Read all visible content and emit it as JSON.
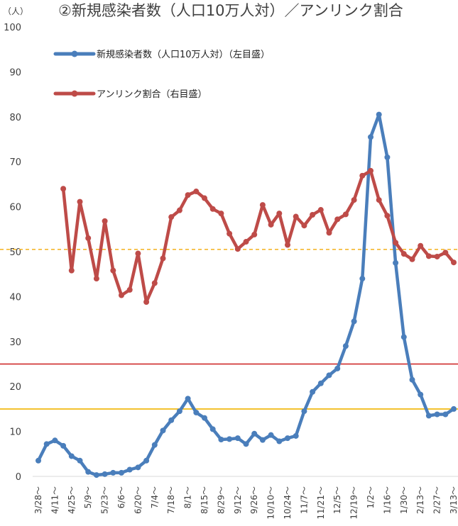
{
  "chart_data": {
    "type": "line",
    "title": "②新規感染者数（人口10万人対）／アンリンク割合",
    "y_unit": "（人）",
    "ylim": [
      0,
      100
    ],
    "yticks": [
      0,
      10,
      20,
      30,
      40,
      50,
      60,
      70,
      80,
      90,
      100
    ],
    "x_tick_labels": [
      "3/28～",
      "4/11～",
      "4/25～",
      "5/9～",
      "5/23～",
      "6/6～",
      "6/20～",
      "7/4～",
      "7/18～",
      "8/1～",
      "8/15～",
      "8/29～",
      "9/12～",
      "9/26～",
      "10/10～",
      "10/24～",
      "11/7～",
      "11/21～",
      "12/5～",
      "12/19～",
      "1/2～",
      "1/16～",
      "1/30～",
      "2/13～",
      "2/27～",
      "3/13～"
    ],
    "series": [
      {
        "name": "新規感染者数（人口10万人対）（左目盛）",
        "color": "#4a7ebb",
        "values": [
          3.5,
          7.2,
          8.0,
          6.8,
          4.5,
          3.5,
          1.0,
          0.3,
          0.5,
          0.8,
          0.8,
          1.5,
          2.0,
          3.5,
          7.0,
          10.2,
          12.5,
          14.5,
          17.3,
          14.2,
          13.0,
          10.5,
          8.2,
          8.3,
          8.5,
          7.2,
          9.5,
          8.1,
          9.2,
          7.8,
          8.5,
          9.0,
          14.5,
          18.8,
          20.7,
          22.5,
          24.0,
          29.0,
          34.5,
          44.0,
          75.5,
          80.5,
          71.0,
          47.5,
          31.0,
          21.5,
          18.2,
          13.5,
          13.8,
          13.8,
          15.0
        ]
      },
      {
        "name": "アンリンク割合（右目盛）",
        "color": "#be4b48",
        "start_index": 3,
        "values": [
          64.0,
          45.8,
          61.1,
          53.0,
          44.0,
          56.8,
          45.8,
          40.3,
          41.5,
          49.6,
          38.8,
          43.0,
          48.5,
          57.7,
          59.2,
          62.6,
          63.4,
          61.9,
          59.5,
          58.5,
          54.0,
          50.6,
          52.2,
          53.8,
          60.4,
          56.0,
          58.5,
          51.5,
          57.8,
          55.8,
          58.2,
          59.3,
          54.2,
          57.2,
          58.3,
          61.5,
          66.9,
          68.0,
          61.5,
          58.0,
          52.0,
          49.5,
          48.3,
          51.3,
          49.0,
          48.9,
          49.8,
          47.6
        ]
      }
    ],
    "reference_lines": [
      {
        "value": 50.5,
        "color": "#f5b82e",
        "style": "dashed"
      },
      {
        "value": 25,
        "color": "#cc1f1f",
        "style": "solid"
      },
      {
        "value": 15,
        "color": "#f0b400",
        "style": "solid"
      }
    ],
    "legend_position": "top-left"
  }
}
